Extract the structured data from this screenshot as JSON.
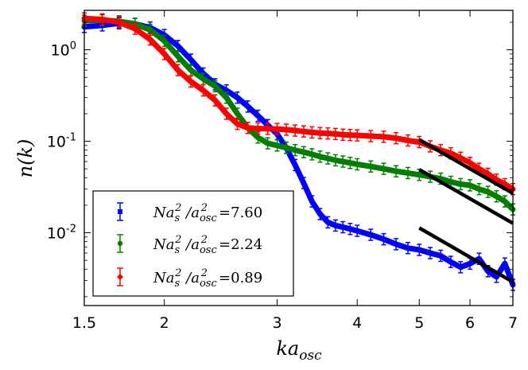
{
  "chart_data": {
    "type": "line",
    "title": "",
    "xlabel": "ka",
    "xlabel_sub": "osc",
    "ylabel": "n(k)",
    "xscale": "log",
    "yscale": "log",
    "xlim": [
      1.5,
      7
    ],
    "ylim": [
      0.0016,
      2.7
    ],
    "x_ticks": [
      {
        "value": 1.5,
        "label": "1.5"
      },
      {
        "value": 2,
        "label": "2"
      },
      {
        "value": 3,
        "label": "3"
      },
      {
        "value": 4,
        "label": "4"
      },
      {
        "value": 5,
        "label": "5"
      },
      {
        "value": 6,
        "label": "6"
      },
      {
        "value": 7,
        "label": "7"
      }
    ],
    "y_ticks": [
      {
        "value": 1,
        "base": "10",
        "exp": "0"
      },
      {
        "value": 0.1,
        "base": "10",
        "exp": "-1"
      },
      {
        "value": 0.01,
        "base": "10",
        "exp": "-2"
      }
    ],
    "legend_position": "lower-left",
    "series": [
      {
        "name": "blue",
        "color": "#0000ff",
        "marker": "square",
        "legend_lhs": "Na",
        "legend_value": "7.60",
        "x": [
          1.5,
          1.6,
          1.7,
          1.8,
          1.9,
          2.0,
          2.1,
          2.2,
          2.3,
          2.4,
          2.5,
          2.6,
          2.7,
          2.8,
          2.9,
          3.0,
          3.1,
          3.2,
          3.3,
          3.4,
          3.5,
          3.6,
          3.7,
          3.8,
          3.9,
          4.0,
          4.2,
          4.4,
          4.6,
          4.8,
          5.0,
          5.2,
          5.4,
          5.6,
          5.8,
          6.0,
          6.2,
          6.4,
          6.6,
          6.8,
          7.0
        ],
        "y": [
          1.78,
          1.85,
          1.95,
          1.92,
          1.75,
          1.45,
          1.1,
          0.78,
          0.55,
          0.42,
          0.36,
          0.3,
          0.24,
          0.19,
          0.15,
          0.12,
          0.085,
          0.055,
          0.035,
          0.022,
          0.016,
          0.013,
          0.012,
          0.0115,
          0.011,
          0.0105,
          0.0095,
          0.0085,
          0.0075,
          0.0068,
          0.0065,
          0.006,
          0.0056,
          0.0048,
          0.0042,
          0.0046,
          0.0052,
          0.0038,
          0.0033,
          0.0046,
          0.0027
        ]
      },
      {
        "name": "green",
        "color": "#008000",
        "marker": "circle",
        "legend_lhs": "Na",
        "legend_value": "2.24",
        "x": [
          1.5,
          1.6,
          1.7,
          1.8,
          1.9,
          2.0,
          2.1,
          2.2,
          2.3,
          2.4,
          2.5,
          2.6,
          2.7,
          2.8,
          2.9,
          3.0,
          3.1,
          3.2,
          3.3,
          3.4,
          3.5,
          3.6,
          3.7,
          3.8,
          3.9,
          4.0,
          4.2,
          4.4,
          4.6,
          4.8,
          5.0,
          5.2,
          5.4,
          5.6,
          5.8,
          6.0,
          6.2,
          6.4,
          6.6,
          6.8,
          7.0
        ],
        "y": [
          2.08,
          2.1,
          2.05,
          1.92,
          1.65,
          1.25,
          0.85,
          0.6,
          0.48,
          0.4,
          0.3,
          0.2,
          0.14,
          0.11,
          0.095,
          0.09,
          0.085,
          0.08,
          0.076,
          0.072,
          0.068,
          0.065,
          0.062,
          0.06,
          0.058,
          0.056,
          0.053,
          0.05,
          0.047,
          0.045,
          0.043,
          0.041,
          0.039,
          0.036,
          0.034,
          0.033,
          0.03,
          0.028,
          0.025,
          0.022,
          0.018
        ]
      },
      {
        "name": "red",
        "color": "#ff0000",
        "marker": "diamond",
        "legend_lhs": "Na",
        "legend_value": "0.89",
        "x": [
          1.5,
          1.6,
          1.7,
          1.8,
          1.9,
          2.0,
          2.1,
          2.2,
          2.3,
          2.4,
          2.5,
          2.6,
          2.7,
          2.8,
          2.9,
          3.0,
          3.1,
          3.2,
          3.3,
          3.4,
          3.5,
          3.6,
          3.7,
          3.8,
          3.9,
          4.0,
          4.2,
          4.4,
          4.6,
          4.8,
          5.0,
          5.2,
          5.4,
          5.6,
          5.8,
          6.0,
          6.2,
          6.4,
          6.6,
          6.8,
          7.0
        ],
        "y": [
          2.2,
          2.15,
          2.0,
          1.7,
          1.3,
          0.9,
          0.6,
          0.45,
          0.36,
          0.28,
          0.2,
          0.155,
          0.14,
          0.138,
          0.137,
          0.136,
          0.134,
          0.131,
          0.128,
          0.125,
          0.123,
          0.122,
          0.12,
          0.118,
          0.117,
          0.116,
          0.114,
          0.112,
          0.108,
          0.102,
          0.098,
          0.088,
          0.08,
          0.074,
          0.066,
          0.058,
          0.05,
          0.044,
          0.038,
          0.034,
          0.03
        ]
      }
    ],
    "fit_lines": [
      {
        "name": "fit-line-red",
        "color": "#000000",
        "x": [
          5.0,
          7.0
        ],
        "y": [
          0.104,
          0.027
        ]
      },
      {
        "name": "fit-line-green",
        "color": "#000000",
        "x": [
          5.0,
          7.0
        ],
        "y": [
          0.049,
          0.0127
        ]
      },
      {
        "name": "fit-line-blue",
        "color": "#000000",
        "x": [
          5.0,
          7.0
        ],
        "y": [
          0.0113,
          0.0029
        ]
      }
    ]
  }
}
